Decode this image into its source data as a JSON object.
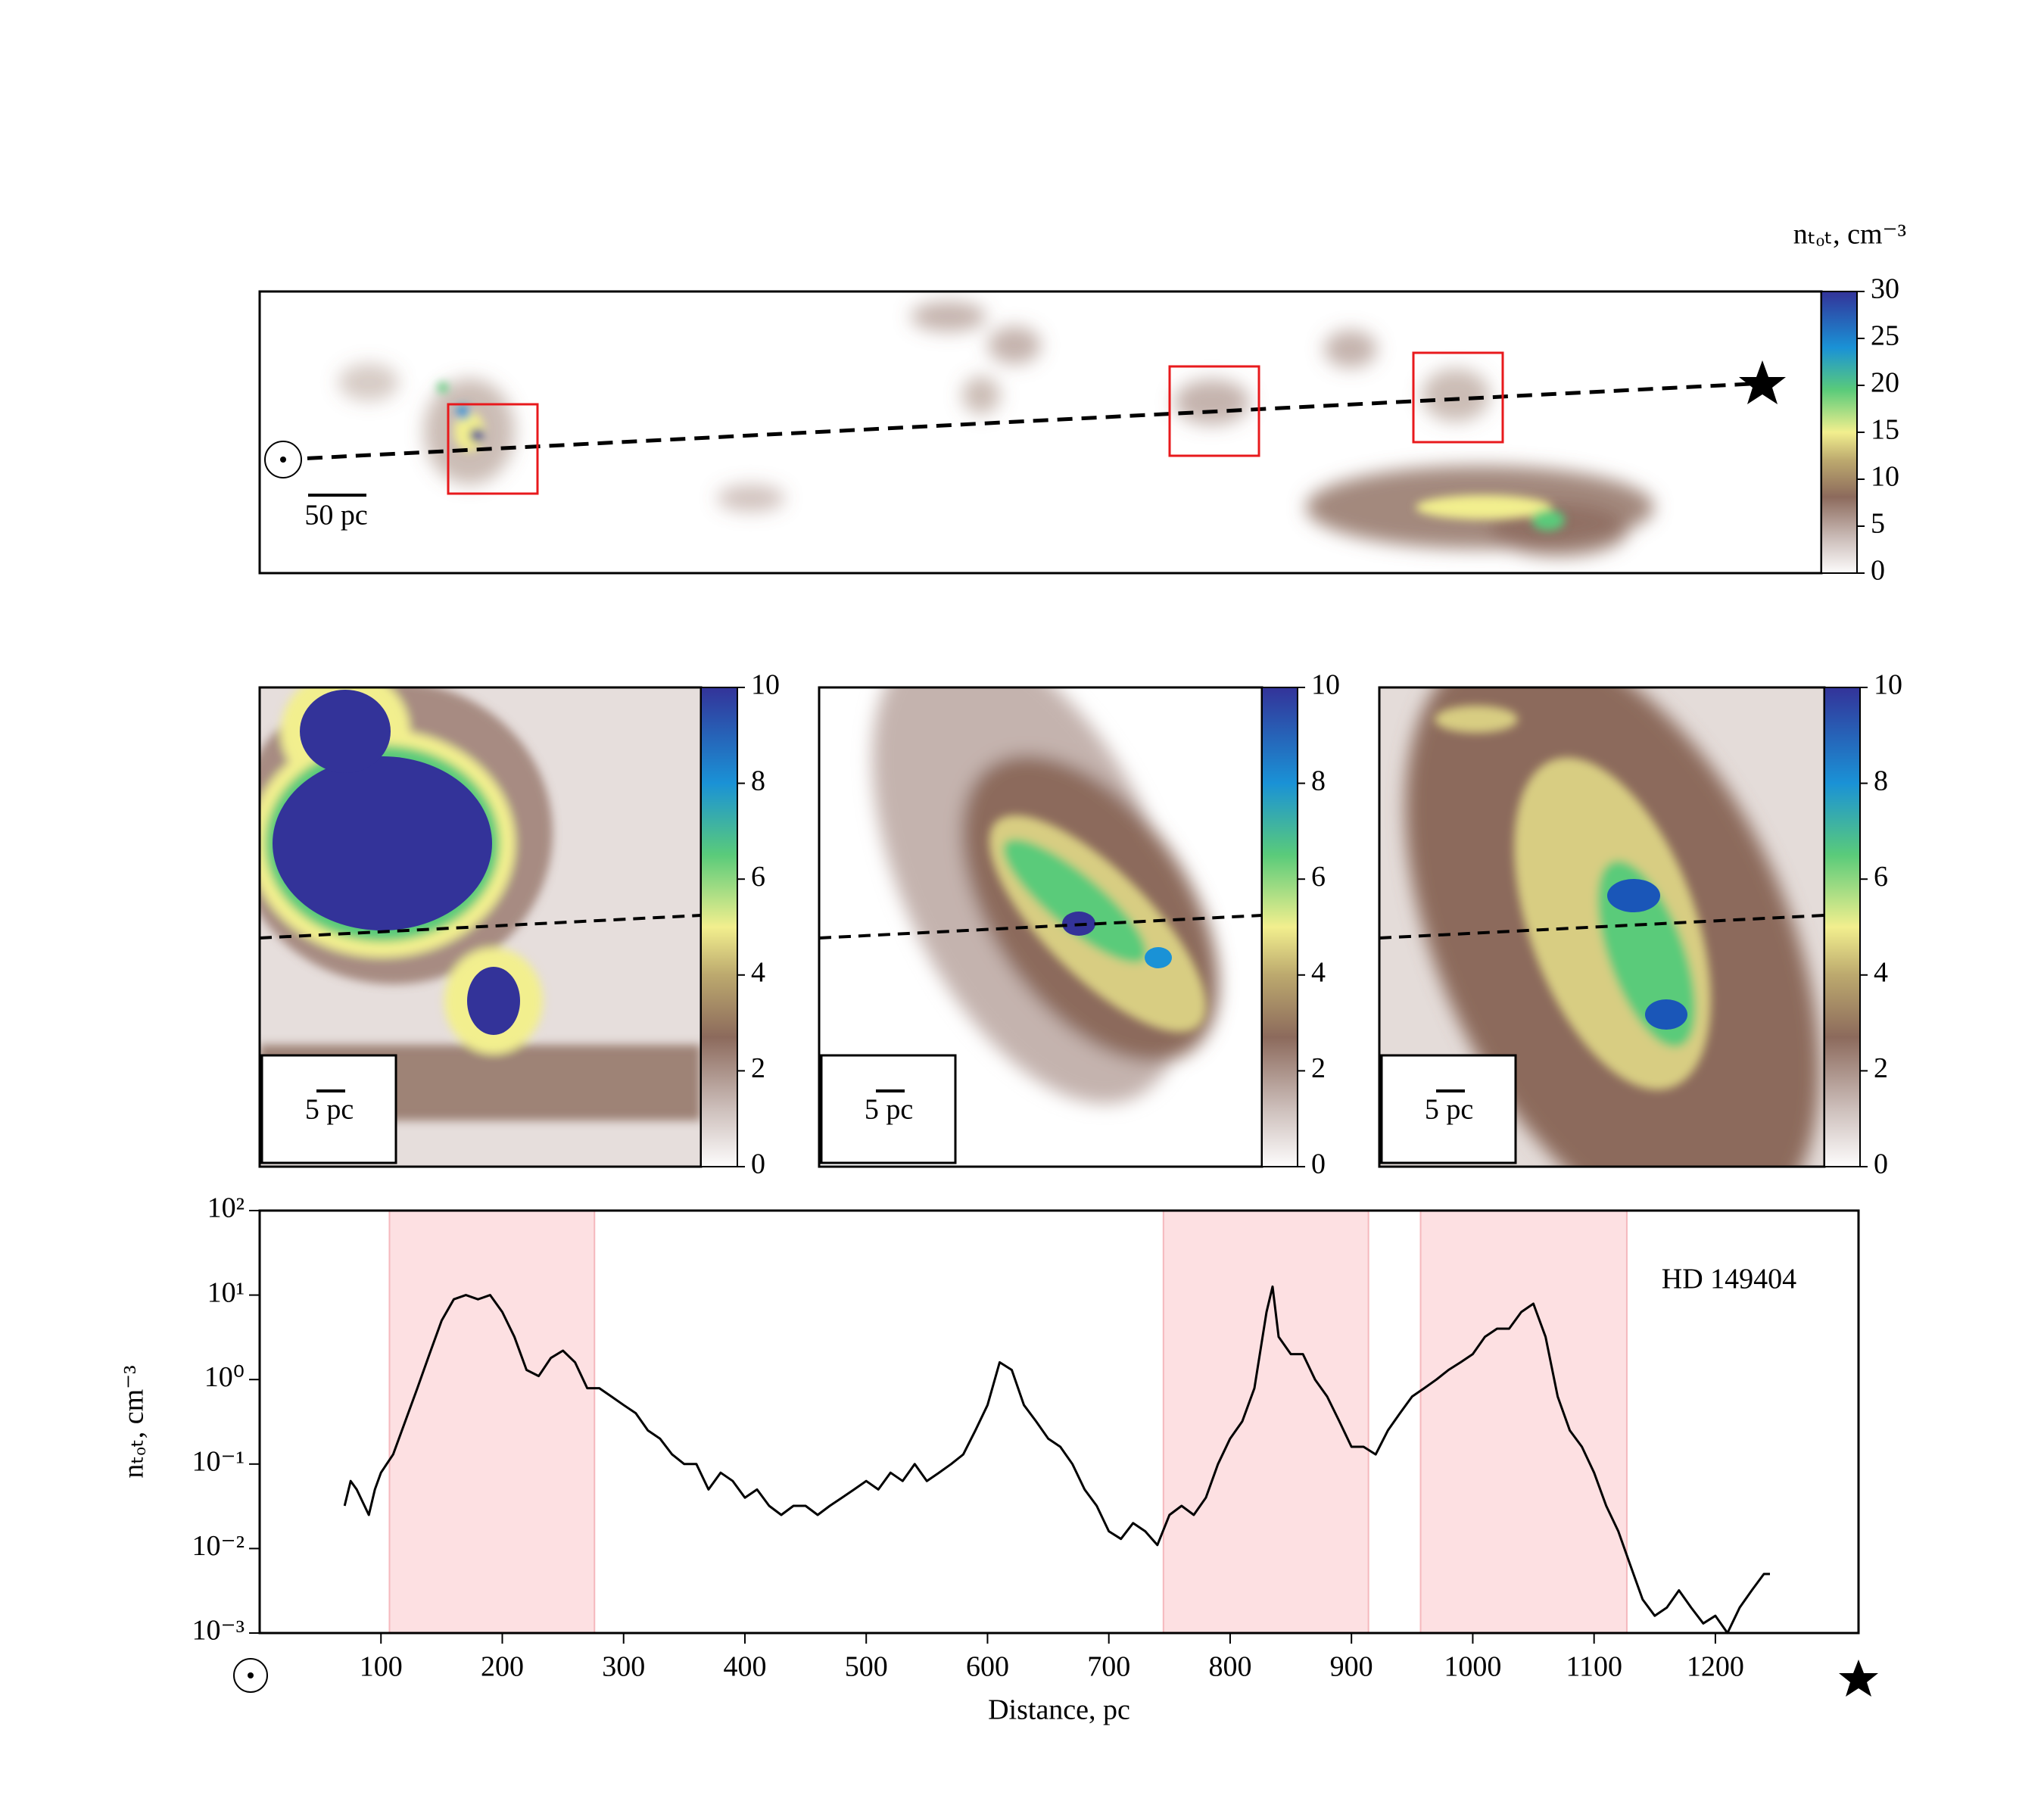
{
  "chart_data": [
    {
      "type": "heatmap",
      "colorbar_label": "nₜₒₜ, cm⁻³",
      "clim": [
        0,
        30
      ],
      "cticks": [
        0,
        5,
        10,
        15,
        20,
        25,
        30
      ],
      "scale_label": "50 pc"
    },
    {
      "type": "heatmap",
      "clim": [
        0,
        10
      ],
      "cticks": [
        0,
        2,
        4,
        6,
        8,
        10
      ],
      "scale_label": "5 pc"
    },
    {
      "type": "heatmap",
      "clim": [
        0,
        10
      ],
      "cticks": [
        0,
        2,
        4,
        6,
        8,
        10
      ],
      "scale_label": "5 pc"
    },
    {
      "type": "heatmap",
      "clim": [
        0,
        10
      ],
      "cticks": [
        0,
        2,
        4,
        6,
        8,
        10
      ],
      "scale_label": "5 pc"
    },
    {
      "type": "line",
      "xlabel": "Distance, pc",
      "ylabel": "nₜₒₜ, cm⁻³",
      "annotation": "HD 149404",
      "color": "#000000",
      "span_color": "#fde0e2",
      "spans": [
        [
          107,
          276
        ],
        [
          745,
          914
        ],
        [
          957,
          1127
        ]
      ],
      "yscale": "log",
      "xlim": [
        0,
        1318
      ],
      "ylim": [
        0.001,
        100
      ],
      "xticks": [
        100,
        200,
        300,
        400,
        500,
        600,
        700,
        800,
        900,
        1000,
        1100,
        1200
      ],
      "yticks": [
        {
          "value": 0.001,
          "label": "10⁻³"
        },
        {
          "value": 0.01,
          "label": "10⁻²"
        },
        {
          "value": 0.1,
          "label": "10⁻¹"
        },
        {
          "value": 1,
          "label": "10⁰"
        },
        {
          "value": 10,
          "label": "10¹"
        },
        {
          "value": 100,
          "label": "10²"
        }
      ],
      "x": [
        70,
        75,
        80,
        90,
        95,
        100,
        110,
        120,
        130,
        140,
        150,
        160,
        170,
        180,
        190,
        200,
        210,
        220,
        230,
        240,
        250,
        260,
        270,
        280,
        290,
        300,
        310,
        320,
        330,
        340,
        350,
        360,
        370,
        380,
        390,
        400,
        410,
        420,
        430,
        440,
        450,
        460,
        470,
        480,
        490,
        500,
        510,
        520,
        530,
        540,
        550,
        560,
        570,
        580,
        590,
        600,
        610,
        620,
        630,
        640,
        650,
        660,
        670,
        680,
        690,
        700,
        710,
        720,
        730,
        740,
        750,
        760,
        770,
        780,
        790,
        800,
        810,
        820,
        830,
        835,
        840,
        850,
        860,
        870,
        880,
        890,
        900,
        910,
        920,
        930,
        940,
        950,
        960,
        970,
        980,
        990,
        1000,
        1010,
        1020,
        1030,
        1040,
        1050,
        1060,
        1070,
        1080,
        1090,
        1100,
        1110,
        1120,
        1130,
        1140,
        1150,
        1160,
        1170,
        1180,
        1190,
        1200,
        1210,
        1220,
        1230,
        1240,
        1245
      ],
      "values": [
        0.032,
        0.063,
        0.05,
        0.025,
        0.05,
        0.079,
        0.13,
        0.32,
        0.79,
        2,
        5,
        8.9,
        10,
        8.9,
        10,
        6.3,
        3.2,
        1.3,
        1.1,
        1.8,
        2.2,
        1.6,
        0.79,
        0.79,
        0.63,
        0.5,
        0.4,
        0.25,
        0.2,
        0.13,
        0.1,
        0.1,
        0.05,
        0.079,
        0.063,
        0.04,
        0.05,
        0.032,
        0.025,
        0.032,
        0.032,
        0.025,
        0.032,
        0.04,
        0.05,
        0.063,
        0.05,
        0.079,
        0.063,
        0.1,
        0.063,
        0.079,
        0.1,
        0.13,
        0.25,
        0.5,
        1.6,
        1.3,
        0.5,
        0.32,
        0.2,
        0.16,
        0.1,
        0.05,
        0.032,
        0.016,
        0.013,
        0.02,
        0.016,
        0.011,
        0.025,
        0.032,
        0.025,
        0.04,
        0.1,
        0.2,
        0.32,
        0.79,
        6.3,
        12.6,
        3.2,
        2,
        2,
        1,
        0.63,
        0.32,
        0.16,
        0.16,
        0.13,
        0.25,
        0.4,
        0.63,
        0.79,
        1,
        1.3,
        1.6,
        2,
        3.2,
        4,
        4,
        6.3,
        7.9,
        3.2,
        0.63,
        0.25,
        0.16,
        0.079,
        0.032,
        0.016,
        0.0063,
        0.0025,
        0.0016,
        0.002,
        0.0032,
        0.002,
        0.0013,
        0.0016,
        0.001,
        0.002,
        0.0032,
        0.005,
        0.005
      ]
    }
  ]
}
